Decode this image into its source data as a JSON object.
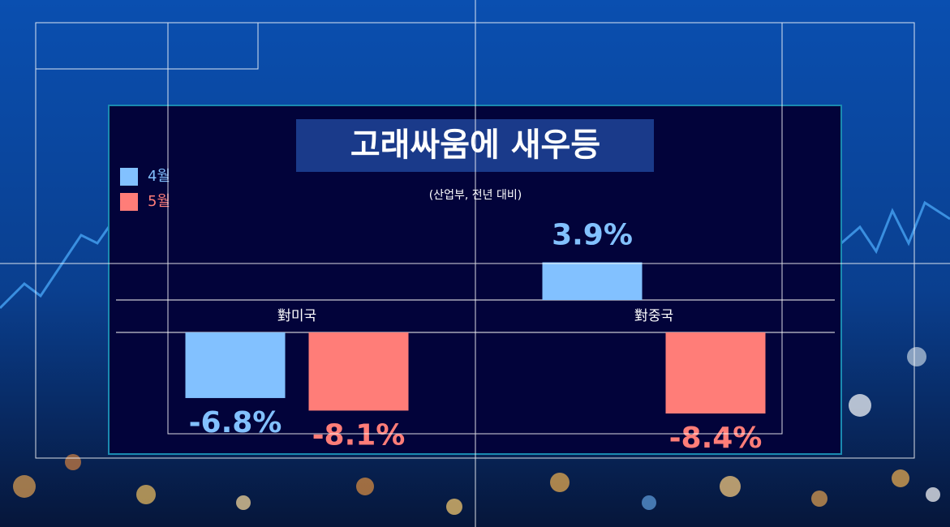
{
  "chart_data": {
    "type": "bar",
    "title": "고래싸움에 새우등",
    "subtitle": "(산업부, 전년 대비)",
    "categories": [
      "對미국",
      "對중국"
    ],
    "series": [
      {
        "name": "4월",
        "color": "#82c1ff",
        "values": [
          -6.8,
          3.9
        ],
        "value_labels": [
          "-6.8%",
          "3.9%"
        ]
      },
      {
        "name": "5월",
        "color": "#ff7d78",
        "values": [
          -8.1,
          -8.4
        ],
        "value_labels": [
          "-8.1%",
          "-8.4%"
        ]
      }
    ]
  }
}
